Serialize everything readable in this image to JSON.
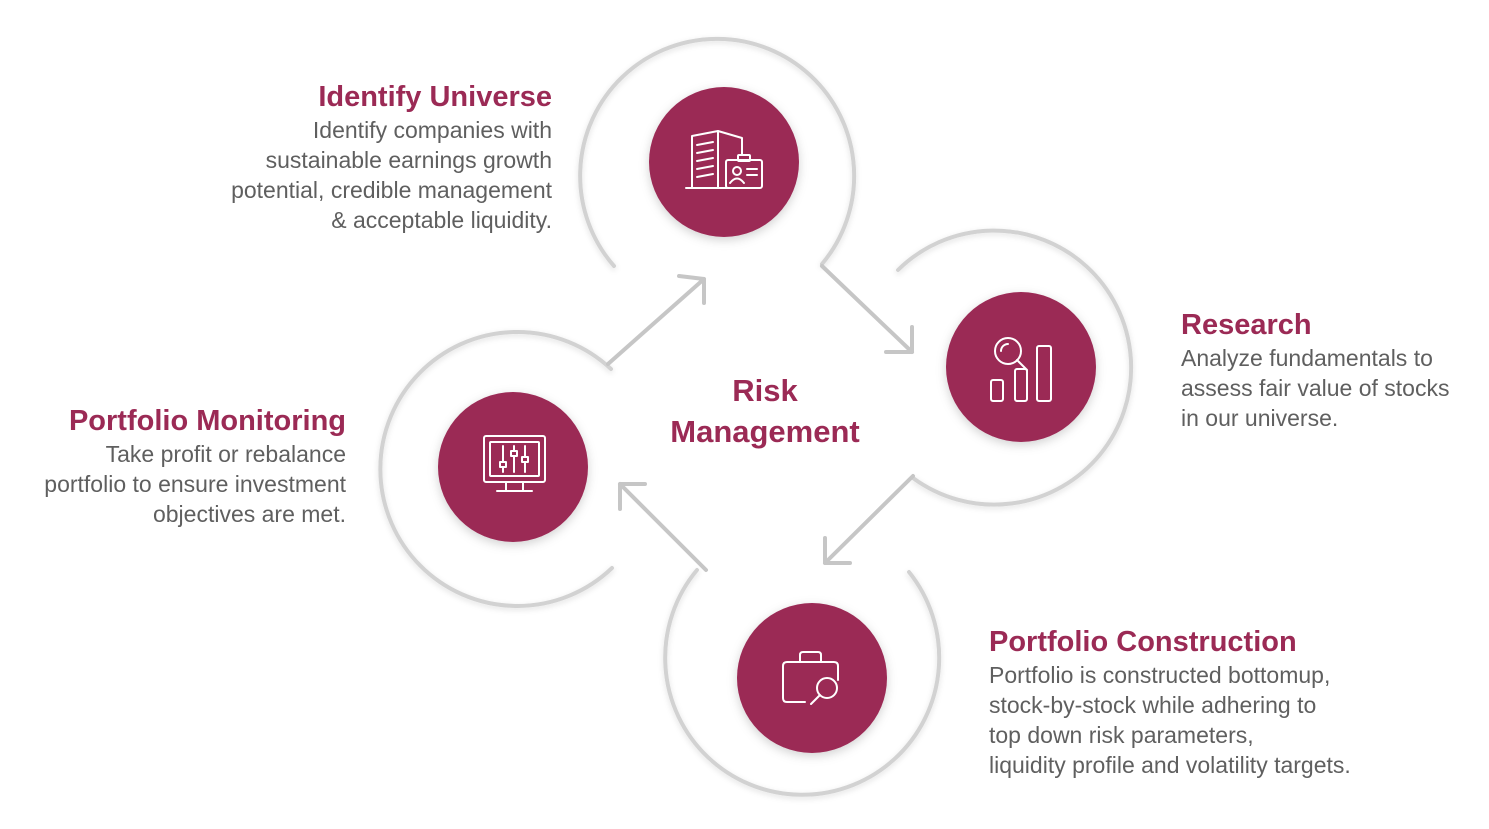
{
  "center": {
    "line1": "Risk",
    "line2": "Management"
  },
  "steps": [
    {
      "title": "Identify Universe",
      "lines": [
        "Identify companies with",
        "sustainable earnings growth",
        "potential, credible management",
        "& acceptable liquidity."
      ],
      "icon": "building-id-card-icon"
    },
    {
      "title": "Research",
      "lines": [
        "Analyze fundamentals to",
        "assess fair value of stocks",
        "in our universe."
      ],
      "icon": "magnifier-bar-chart-icon"
    },
    {
      "title": "Portfolio Construction",
      "lines": [
        "Portfolio is constructed bottomup,",
        "stock-by-stock while adhering to",
        "top down risk parameters,",
        "liquidity profile and volatility targets."
      ],
      "icon": "briefcase-magnifier-icon"
    },
    {
      "title": "Portfolio Monitoring",
      "lines": [
        "Take profit or rebalance",
        "portfolio to ensure investment",
        "objectives are met."
      ],
      "icon": "monitor-sliders-icon"
    }
  ],
  "colors": {
    "accent": "#9b2a55",
    "text": "#5f5f5f",
    "ring": "#d2d2d2",
    "arrow": "#c6c6c6"
  }
}
